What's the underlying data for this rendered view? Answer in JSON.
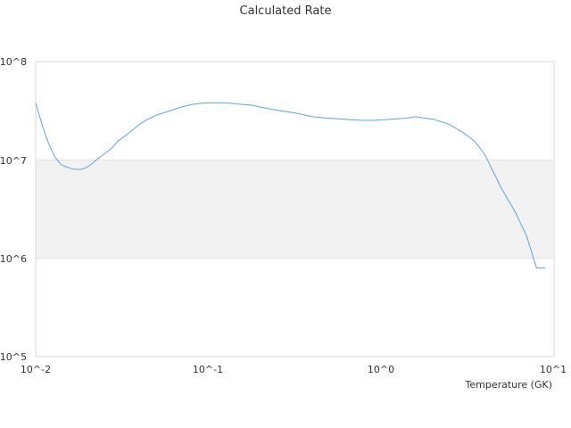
{
  "chart_data": {
    "type": "line",
    "title": "Calculated Rate",
    "xlabel": "Temperature (GK)",
    "ylabel": "",
    "x_scale": "log",
    "y_scale": "log",
    "xlim": [
      0.01,
      10
    ],
    "ylim": [
      100000,
      100000000
    ],
    "x_ticks": [
      "10^-2",
      "10^-1",
      "10^0",
      "10^1"
    ],
    "y_ticks": [
      "10^5",
      "10^6",
      "10^7",
      "10^8"
    ],
    "band": {
      "from": 1000000,
      "to": 10000000,
      "color": "#f2f2f2"
    },
    "series_color": "#5aa5e8",
    "series": [
      {
        "x": [
          0.01,
          0.011,
          0.012,
          0.013,
          0.014,
          0.015,
          0.016,
          0.017,
          0.018,
          0.019,
          0.02,
          0.021,
          0.022,
          0.025,
          0.028,
          0.03,
          0.035,
          0.04,
          0.045,
          0.05,
          0.06,
          0.07,
          0.08,
          0.09,
          0.1,
          0.12,
          0.14,
          0.16,
          0.18,
          0.2,
          0.25,
          0.3,
          0.35,
          0.4,
          0.5,
          0.6,
          0.7,
          0.8,
          0.9,
          1.0,
          1.2,
          1.4,
          1.6,
          1.8,
          2.0,
          2.5,
          3.0,
          3.5,
          4.0,
          4.5,
          5.0,
          6.0,
          7.0,
          8.0,
          9.0
        ],
        "y": [
          38000000,
          21500000,
          14000000,
          10500000,
          9000000,
          8500000,
          8200000,
          8000000,
          8000000,
          8150000,
          8500000,
          9000000,
          9700000,
          11500000,
          13500000,
          15500000,
          19000000,
          23000000,
          26000000,
          28500000,
          31500000,
          34500000,
          36500000,
          37500000,
          38000000,
          38000000,
          37500000,
          36500000,
          36000000,
          34500000,
          32000000,
          30500000,
          29000000,
          27500000,
          26500000,
          26000000,
          25500000,
          25200000,
          25200000,
          25500000,
          26000000,
          26500000,
          27500000,
          26500000,
          26000000,
          23000000,
          19000000,
          15500000,
          11500000,
          7500000,
          5200000,
          3000000,
          1700000,
          800000,
          800000
        ]
      }
    ]
  }
}
